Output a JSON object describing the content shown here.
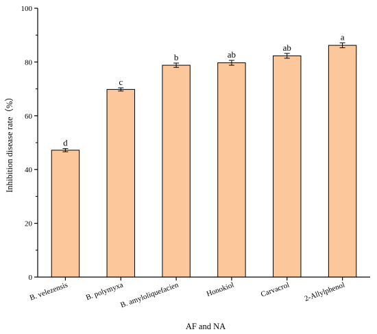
{
  "chart_data": {
    "type": "bar",
    "categories": [
      "B. velezensis",
      "B. polymyxa",
      "B. amyloliquefacien",
      "Honokiol",
      "Carvacrol",
      "2-Allylphenol"
    ],
    "values": [
      47.2,
      69.8,
      78.8,
      79.7,
      82.3,
      86.2
    ],
    "errors": [
      0.6,
      0.6,
      0.8,
      0.9,
      0.9,
      0.9
    ],
    "significance_labels": [
      "d",
      "c",
      "b",
      "ab",
      "ab",
      "a"
    ],
    "title": "",
    "xlabel": "AF and NA",
    "ylabel": "Inhibition disease rate（%）",
    "ylim": [
      0,
      100
    ],
    "yticks": [
      0,
      20,
      40,
      60,
      80,
      100
    ],
    "grid": false,
    "legend": "none",
    "bar_color": "#fcc89b",
    "bar_edge_color": "#000000"
  }
}
